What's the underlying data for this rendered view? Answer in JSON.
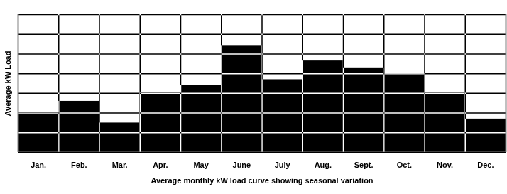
{
  "chart_data": {
    "type": "bar",
    "xlabel": "Average monthly kW load curve showing seasonal variation",
    "ylabel": "Average kW Load",
    "categories": [
      "Jan.",
      "Feb.",
      "Mar.",
      "Apr.",
      "May",
      "June",
      "July",
      "Aug.",
      "Sept.",
      "Oct.",
      "Nov.",
      "Dec."
    ],
    "values": [
      2,
      2.6,
      1.5,
      3,
      3.4,
      5.4,
      3.7,
      4.65,
      4.3,
      4,
      3,
      1.7
    ],
    "color": "#000000",
    "ylim": [
      0,
      7
    ],
    "yticks": [
      0,
      1,
      2,
      3,
      4,
      5,
      6,
      7
    ],
    "grid": true,
    "tick_labels": "x"
  }
}
